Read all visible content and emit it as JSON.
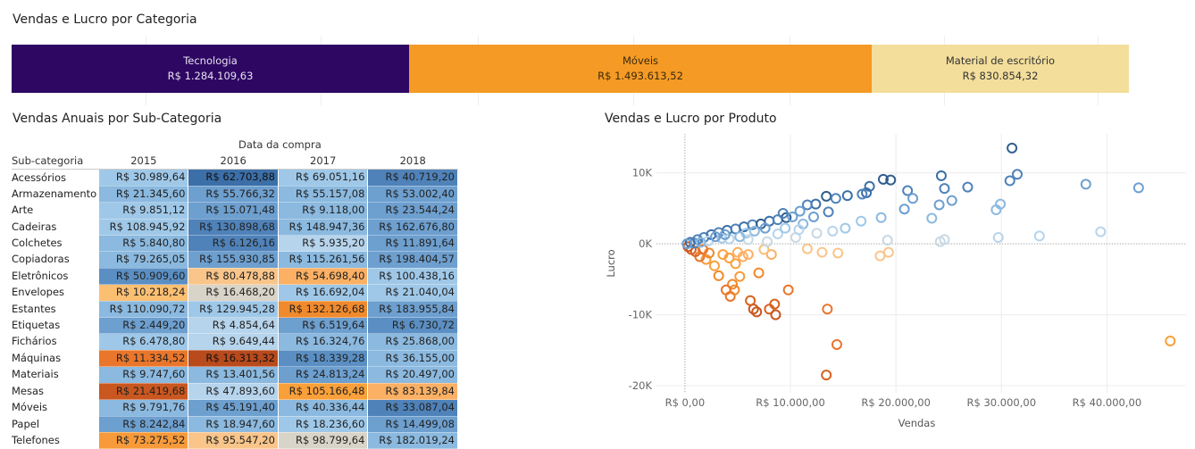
{
  "top": {
    "title": "Vendas e Lucro por Categoria",
    "segments": [
      {
        "name": "Tecnologia",
        "value_label": "R$ 1.284.109,63",
        "value": 1284109.63,
        "color": "#2e0763",
        "text_color": "#e6e0f0"
      },
      {
        "name": "Móveis",
        "value_label": "R$ 1.493.613,52",
        "value": 1493613.52,
        "color": "#f59a24",
        "text_color": "#3a2a10"
      },
      {
        "name": "Material de escritório",
        "value_label": "R$ 830.854,32",
        "value": 830854.32,
        "color": "#f3de9b",
        "text_color": "#333"
      }
    ]
  },
  "table": {
    "title": "Vendas Anuais por Sub-Categoria",
    "date_header": "Data da compra",
    "row_header": "Sub-categoria",
    "years": [
      "2015",
      "2016",
      "2017",
      "2018"
    ],
    "rows": [
      {
        "name": "Acessórios",
        "values": [
          "R$ 30.989,64",
          "R$ 62.703,88",
          "R$ 69.051,16",
          "R$ 40.719,20"
        ],
        "colors": [
          "#9fc8e8",
          "#3c6fa8",
          "#9fc8e8",
          "#4f82b9"
        ]
      },
      {
        "name": "Armazenamento",
        "values": [
          "R$ 21.345,60",
          "R$ 55.766,32",
          "R$ 55.157,08",
          "R$ 53.002,40"
        ],
        "colors": [
          "#8bb9df",
          "#6d9fcf",
          "#8bb9df",
          "#6d9fcf"
        ]
      },
      {
        "name": "Arte",
        "values": [
          "R$ 9.851,12",
          "R$ 15.071,48",
          "R$ 9.118,00",
          "R$ 23.544,24"
        ],
        "colors": [
          "#9fc8e8",
          "#6d9fcf",
          "#8bb9df",
          "#6d9fcf"
        ]
      },
      {
        "name": "Cadeiras",
        "values": [
          "R$ 108.945,92",
          "R$ 130.898,68",
          "R$ 148.947,36",
          "R$ 162.676,80"
        ],
        "colors": [
          "#9fc8e8",
          "#4f82b9",
          "#8bb9df",
          "#6d9fcf"
        ]
      },
      {
        "name": "Colchetes",
        "values": [
          "R$ 5.840,80",
          "R$ 6.126,16",
          "R$ 5.935,20",
          "R$ 11.891,64"
        ],
        "colors": [
          "#8bb9df",
          "#4f82b9",
          "#b6d4ec",
          "#6d9fcf"
        ]
      },
      {
        "name": "Copiadoras",
        "values": [
          "R$ 79.265,05",
          "R$ 155.930,85",
          "R$ 115.261,56",
          "R$ 198.404,57"
        ],
        "colors": [
          "#8bb9df",
          "#6d9fcf",
          "#8bb9df",
          "#6d9fcf"
        ]
      },
      {
        "name": "Eletrônicos",
        "values": [
          "R$ 50.909,60",
          "R$ 80.478,88",
          "R$ 54.698,40",
          "R$ 100.438,16"
        ],
        "colors": [
          "#5b8fc3",
          "#f9c58a",
          "#fbb064",
          "#9fc8e8"
        ]
      },
      {
        "name": "Envelopes",
        "values": [
          "R$ 10.218,24",
          "R$ 16.468,20",
          "R$ 16.692,04",
          "R$ 21.040,04"
        ],
        "colors": [
          "#fbbf72",
          "#d9d4c8",
          "#9fc8e8",
          "#9fc8e8"
        ]
      },
      {
        "name": "Estantes",
        "values": [
          "R$ 110.090,72",
          "R$ 129.945,28",
          "R$ 132.126,68",
          "R$ 183.955,84"
        ],
        "colors": [
          "#8bb9df",
          "#9fc8e8",
          "#f08a2c",
          "#6d9fcf"
        ]
      },
      {
        "name": "Etiquetas",
        "values": [
          "R$ 2.449,20",
          "R$ 4.854,64",
          "R$ 6.519,64",
          "R$ 6.730,72"
        ],
        "colors": [
          "#6d9fcf",
          "#b6d4ec",
          "#6d9fcf",
          "#5b8fc3"
        ]
      },
      {
        "name": "Fichários",
        "values": [
          "R$ 6.478,80",
          "R$ 9.649,44",
          "R$ 16.324,76",
          "R$ 25.868,00"
        ],
        "colors": [
          "#9fc8e8",
          "#b6d4ec",
          "#8bb9df",
          "#8bb9df"
        ]
      },
      {
        "name": "Máquinas",
        "values": [
          "R$ 11.334,52",
          "R$ 16.313,32",
          "R$ 18.339,28",
          "R$ 36.155,00"
        ],
        "colors": [
          "#e9762b",
          "#b84a1c",
          "#5b8fc3",
          "#8bb9df"
        ]
      },
      {
        "name": "Materiais",
        "values": [
          "R$ 9.747,60",
          "R$ 13.401,56",
          "R$ 24.813,24",
          "R$ 20.497,00"
        ],
        "colors": [
          "#8bb9df",
          "#8bb9df",
          "#6d9fcf",
          "#8bb9df"
        ]
      },
      {
        "name": "Mesas",
        "values": [
          "R$ 21.419,68",
          "R$ 47.893,60",
          "R$ 105.166,48",
          "R$ 83.139,84"
        ],
        "colors": [
          "#c9571f",
          "#b6d4ec",
          "#f9a03a",
          "#fbb064"
        ]
      },
      {
        "name": "Móveis",
        "values": [
          "R$ 9.791,76",
          "R$ 45.191,40",
          "R$ 40.336,44",
          "R$ 33.087,04"
        ],
        "colors": [
          "#8bb9df",
          "#6d9fcf",
          "#8bb9df",
          "#4f82b9"
        ]
      },
      {
        "name": "Papel",
        "values": [
          "R$ 8.242,84",
          "R$ 18.947,60",
          "R$ 18.236,60",
          "R$ 14.499,08"
        ],
        "colors": [
          "#6d9fcf",
          "#8bb9df",
          "#9fc8e8",
          "#6d9fcf"
        ]
      },
      {
        "name": "Telefones",
        "values": [
          "R$ 73.275,52",
          "R$ 95.547,20",
          "R$ 98.799,64",
          "R$ 182.019,24"
        ],
        "colors": [
          "#f79a3a",
          "#f9c58a",
          "#d9d4c8",
          "#8bb9df"
        ]
      }
    ]
  },
  "chart_data": [
    {
      "type": "bar",
      "title": "Vendas e Lucro por Categoria",
      "categories": [
        "Tecnologia",
        "Móveis",
        "Material de escritório"
      ],
      "values": [
        1284109.63,
        1493613.52,
        830854.32
      ]
    },
    {
      "type": "table",
      "title": "Vendas Anuais por Sub-Categoria",
      "columns": [
        "2015",
        "2016",
        "2017",
        "2018"
      ],
      "rows": [
        "Acessórios",
        "Armazenamento",
        "Arte",
        "Cadeiras",
        "Colchetes",
        "Copiadoras",
        "Eletrônicos",
        "Envelopes",
        "Estantes",
        "Etiquetas",
        "Fichários",
        "Máquinas",
        "Materiais",
        "Mesas",
        "Móveis",
        "Papel",
        "Telefones"
      ]
    },
    {
      "type": "scatter",
      "title": "Vendas e Lucro por Produto",
      "xlabel": "Vendas",
      "ylabel": "Lucro",
      "xlim": [
        -2700,
        47500
      ],
      "ylim": [
        -21000,
        15500
      ],
      "xticks": [
        0,
        10000,
        20000,
        30000,
        40000
      ],
      "xtick_labels": [
        "R$ 0,00",
        "R$ 10.000,00",
        "R$ 20.000,00",
        "R$ 30.000,00",
        "R$ 40.000,00"
      ],
      "yticks": [
        10000,
        0,
        -10000,
        -20000
      ],
      "ytick_labels": [
        "10K",
        "0K",
        "-10K",
        "-20K"
      ],
      "grid": true,
      "points": [
        [
          31000,
          13500,
          "#2f5f8e"
        ],
        [
          31500,
          9800,
          "#4f82b9"
        ],
        [
          30800,
          8900,
          "#4f82b9"
        ],
        [
          38000,
          8400,
          "#6d9fcf"
        ],
        [
          43000,
          7900,
          "#6d9fcf"
        ],
        [
          24300,
          9600,
          "#3c6fa8"
        ],
        [
          26800,
          8000,
          "#4f82b9"
        ],
        [
          24600,
          7800,
          "#4f82b9"
        ],
        [
          25300,
          6100,
          "#6d9fcf"
        ],
        [
          24100,
          5500,
          "#6d9fcf"
        ],
        [
          21100,
          7500,
          "#4f82b9"
        ],
        [
          21600,
          6400,
          "#6d9fcf"
        ],
        [
          20800,
          4900,
          "#6d9fcf"
        ],
        [
          23400,
          3600,
          "#8bb9df"
        ],
        [
          29500,
          4800,
          "#8bb9df"
        ],
        [
          29900,
          5600,
          "#8bb9df"
        ],
        [
          18800,
          9100,
          "#2f5f8e"
        ],
        [
          19500,
          9000,
          "#2f5f8e"
        ],
        [
          17500,
          8100,
          "#3c6fa8"
        ],
        [
          17200,
          7200,
          "#3c6fa8"
        ],
        [
          16800,
          7000,
          "#4f82b9"
        ],
        [
          15400,
          6800,
          "#3c6fa8"
        ],
        [
          13400,
          6700,
          "#2f5f8e"
        ],
        [
          14300,
          6400,
          "#4f82b9"
        ],
        [
          12400,
          5600,
          "#3c6fa8"
        ],
        [
          11600,
          5500,
          "#4f82b9"
        ],
        [
          10900,
          4600,
          "#6d9fcf"
        ],
        [
          18600,
          3700,
          "#8bb9df"
        ],
        [
          16700,
          3200,
          "#9fc8e8"
        ],
        [
          39400,
          1700,
          "#b6d4ec"
        ],
        [
          33600,
          1100,
          "#b6d4ec"
        ],
        [
          29700,
          900,
          "#b6d4ec"
        ],
        [
          24600,
          600,
          "#c8d8e4"
        ],
        [
          24200,
          300,
          "#c8d8e4"
        ],
        [
          19200,
          500,
          "#c8d8e4"
        ],
        [
          19300,
          -1200,
          "#f9c58a"
        ],
        [
          18500,
          -1700,
          "#f9c58a"
        ],
        [
          14000,
          1800,
          "#b6d4ec"
        ],
        [
          15200,
          2200,
          "#9fc8e8"
        ],
        [
          12500,
          1500,
          "#c8d8e4"
        ],
        [
          10500,
          900,
          "#c8d8e4"
        ],
        [
          11600,
          -700,
          "#f9c58a"
        ],
        [
          13000,
          -1200,
          "#f9c58a"
        ],
        [
          14500,
          -1300,
          "#f9c58a"
        ],
        [
          8200,
          -1500,
          "#fbb064"
        ],
        [
          7000,
          -4100,
          "#f08a2c"
        ],
        [
          9800,
          -6500,
          "#e9762b"
        ],
        [
          8500,
          -8500,
          "#d8621f"
        ],
        [
          8000,
          -9200,
          "#d8621f"
        ],
        [
          8600,
          -10000,
          "#c9571f"
        ],
        [
          6500,
          -9200,
          "#c9571f"
        ],
        [
          6800,
          -9600,
          "#c9571f"
        ],
        [
          6200,
          -8000,
          "#d8621f"
        ],
        [
          13500,
          -9200,
          "#e9762b"
        ],
        [
          14400,
          -14200,
          "#e9762b"
        ],
        [
          13400,
          -18500,
          "#d8621f"
        ],
        [
          46000,
          -13700,
          "#f9a03a"
        ],
        [
          4300,
          -7400,
          "#e9762b"
        ],
        [
          4700,
          -6500,
          "#f08a2c"
        ],
        [
          4500,
          -5700,
          "#f08a2c"
        ],
        [
          3900,
          -6500,
          "#e9762b"
        ],
        [
          3200,
          -4500,
          "#f08a2c"
        ],
        [
          5200,
          -4600,
          "#f79a3a"
        ],
        [
          2800,
          -3100,
          "#f9a03a"
        ],
        [
          5500,
          -1800,
          "#fbb064"
        ],
        [
          4800,
          -2800,
          "#f9a03a"
        ],
        [
          2000,
          -2200,
          "#f79a3a"
        ],
        [
          1400,
          -1800,
          "#e9762b"
        ],
        [
          1000,
          -1100,
          "#d8621f"
        ],
        [
          600,
          -800,
          "#d8621f"
        ],
        [
          300,
          -400,
          "#c9571f"
        ],
        [
          2300,
          -1300,
          "#f08a2c"
        ],
        [
          1700,
          -800,
          "#e9762b"
        ],
        [
          3600,
          -1500,
          "#f9a03a"
        ],
        [
          4200,
          -2000,
          "#f9a03a"
        ],
        [
          6000,
          -1500,
          "#fbb064"
        ],
        [
          7500,
          -800,
          "#fbbf72"
        ],
        [
          5000,
          -1200,
          "#fbb064"
        ],
        [
          1200,
          600,
          "#4f82b9"
        ],
        [
          1800,
          900,
          "#4f82b9"
        ],
        [
          2500,
          1300,
          "#3c6fa8"
        ],
        [
          3200,
          1600,
          "#4f82b9"
        ],
        [
          4000,
          1900,
          "#3c6fa8"
        ],
        [
          4800,
          2100,
          "#4f82b9"
        ],
        [
          5600,
          2400,
          "#3c6fa8"
        ],
        [
          6400,
          2700,
          "#4f82b9"
        ],
        [
          7200,
          2800,
          "#2f5f8e"
        ],
        [
          8000,
          3200,
          "#3c6fa8"
        ],
        [
          8800,
          3400,
          "#4f82b9"
        ],
        [
          9600,
          3700,
          "#2f5f8e"
        ],
        [
          10200,
          3800,
          "#6d9fcf"
        ],
        [
          7600,
          2200,
          "#6d9fcf"
        ],
        [
          6600,
          1800,
          "#8bb9df"
        ],
        [
          5800,
          1500,
          "#9fc8e8"
        ],
        [
          8800,
          1400,
          "#b6d4ec"
        ],
        [
          9500,
          2200,
          "#9fc8e8"
        ],
        [
          3500,
          800,
          "#9fc8e8"
        ],
        [
          2200,
          400,
          "#b6d4ec"
        ],
        [
          4200,
          700,
          "#b6d4ec"
        ],
        [
          6000,
          600,
          "#c8d8e4"
        ],
        [
          7800,
          300,
          "#c8d8e4"
        ],
        [
          500,
          200,
          "#3c6fa8"
        ],
        [
          900,
          100,
          "#4f82b9"
        ],
        [
          200,
          0,
          "#6d9fcf"
        ],
        [
          1500,
          200,
          "#8bb9df"
        ],
        [
          11200,
          2800,
          "#8bb9df"
        ],
        [
          12200,
          3800,
          "#6d9fcf"
        ],
        [
          13600,
          4500,
          "#4f82b9"
        ],
        [
          9300,
          4300,
          "#4f82b9"
        ],
        [
          10800,
          2000,
          "#b6d4ec"
        ],
        [
          3800,
          1300,
          "#6d9fcf"
        ],
        [
          2900,
          1000,
          "#6d9fcf"
        ],
        [
          5200,
          1000,
          "#8bb9df"
        ]
      ]
    }
  ]
}
